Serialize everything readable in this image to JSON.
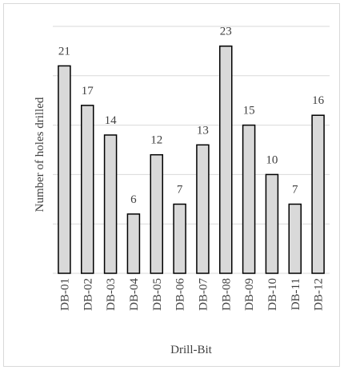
{
  "chart_data": {
    "type": "bar",
    "categories": [
      "DB-01",
      "DB-02",
      "DB-03",
      "DB-04",
      "DB-05",
      "DB-06",
      "DB-07",
      "DB-08",
      "DB-09",
      "DB-10",
      "DB-11",
      "DB-12"
    ],
    "values": [
      21,
      17,
      14,
      6,
      12,
      7,
      13,
      23,
      15,
      10,
      7,
      16
    ],
    "xlabel": "Drill-Bit",
    "ylabel": "Number of holes drilled",
    "ylim": [
      0,
      25
    ],
    "grid": true,
    "y_tick_labels_visible": false,
    "data_labels": true,
    "colors": {
      "bar_fill": "#d9d9d9",
      "bar_stroke": "#000000",
      "gridline": "#d9d9d9",
      "text": "#404040",
      "frame": "#d9d9d9"
    }
  }
}
